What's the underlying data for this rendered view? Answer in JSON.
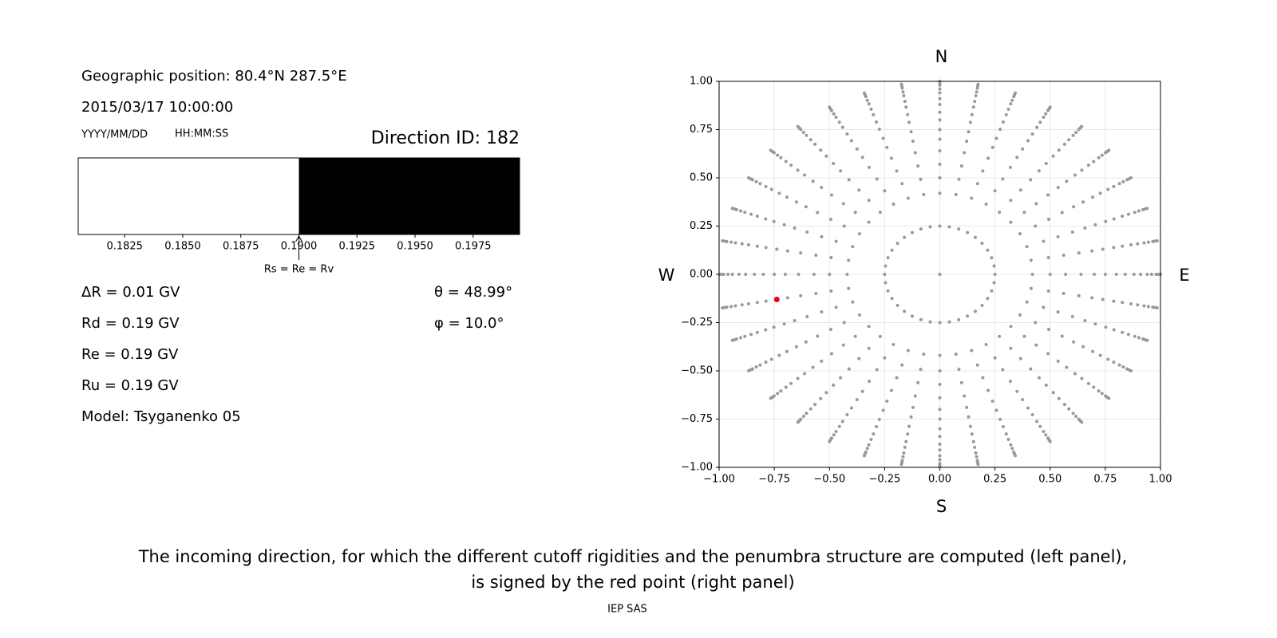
{
  "header": {
    "position": "Geographic position: 80.4°N 287.5°E",
    "datetime": "2015/03/17 10:00:00",
    "date_format": "YYYY/MM/DD",
    "time_format": "HH:MM:SS",
    "direction": "Direction ID: 182"
  },
  "params": [
    "ΔR = 0.01 GV",
    "Rd = 0.19 GV",
    "Re = 0.19 GV",
    "Ru = 0.19 GV",
    "Model: Tsyganenko 05"
  ],
  "angles": [
    "θ = 48.99°",
    "φ = 10.0°"
  ],
  "chart_data": [
    {
      "type": "penumbra",
      "xlim": [
        0.1805,
        0.1995
      ],
      "xticks": [
        0.1825,
        {
          "value": 0.185,
          "label": "0.1850"
        },
        0.1875,
        {
          "value": 0.19,
          "label": "0.1900"
        },
        0.1925,
        {
          "value": 0.195,
          "label": "0.1950"
        },
        0.1975
      ],
      "segments": [
        {
          "start": 0.1805,
          "end": 0.19,
          "color": "#ffffff"
        },
        {
          "start": 0.19,
          "end": 0.1995,
          "color": "#000000"
        }
      ],
      "annotation": {
        "text": "Rs = Re = Rv",
        "x": 0.19
      }
    },
    {
      "type": "scatter",
      "xlim": [
        -1,
        1
      ],
      "ylim": [
        -1,
        1
      ],
      "xticks": [
        {
          "value": -1,
          "label": "−1.00"
        },
        {
          "value": -0.75,
          "label": "−0.75"
        },
        {
          "value": -0.5,
          "label": "−0.50"
        },
        {
          "value": -0.25,
          "label": "−0.25"
        },
        {
          "value": 0,
          "label": "0.00"
        },
        {
          "value": 0.25,
          "label": "0.25"
        },
        {
          "value": 0.5,
          "label": "0.50"
        },
        {
          "value": 0.75,
          "label": "0.75"
        },
        {
          "value": 1,
          "label": "1.00"
        }
      ],
      "yticks": [
        {
          "value": -1,
          "label": "−1.00"
        },
        {
          "value": -0.75,
          "label": "−0.75"
        },
        {
          "value": -0.5,
          "label": "−0.50"
        },
        {
          "value": -0.25,
          "label": "−0.25"
        },
        {
          "value": 0,
          "label": "0.00"
        },
        {
          "value": 0.25,
          "label": "0.25"
        },
        {
          "value": 0.5,
          "label": "0.50"
        },
        {
          "value": 0.75,
          "label": "0.75"
        },
        {
          "value": 1,
          "label": "1.00"
        }
      ],
      "grid": true,
      "directions": {
        "north": "N",
        "south": "S",
        "east": "E",
        "west": "W"
      },
      "point_color": "#999999",
      "rings": [
        {
          "r": 0,
          "azimuth": [
            0
          ]
        },
        {
          "r": 0.25,
          "azimuth": [
            0,
            10,
            20,
            30,
            40,
            50,
            60,
            70,
            80,
            90,
            100,
            110,
            120,
            130,
            140,
            150,
            160,
            170,
            180,
            190,
            200,
            210,
            220,
            230,
            240,
            250,
            260,
            270,
            280,
            290,
            300,
            310,
            320,
            330,
            340,
            350
          ]
        }
      ],
      "spoke_azimuths": [
        0,
        10,
        20,
        30,
        40,
        50,
        60,
        70,
        80,
        90,
        100,
        110,
        120,
        130,
        140,
        150,
        160,
        170,
        180,
        190,
        200,
        210,
        220,
        230,
        240,
        250,
        260,
        270,
        280,
        290,
        300,
        310,
        320,
        330,
        340,
        350
      ],
      "spoke_r": [
        0.42,
        0.5,
        0.57,
        0.64,
        0.7,
        0.75,
        0.8,
        0.84,
        0.88,
        0.91,
        0.94,
        0.96,
        0.98,
        0.99,
        1.0
      ],
      "highlight": {
        "color": "#e8001c",
        "r": 0.75,
        "azimuth": 190
      }
    }
  ],
  "caption": [
    "The incoming direction, for which the different cutoff rigidities and the penumbra structure are computed (left panel),",
    "is signed by the red point (right panel)"
  ],
  "footer": "IEP SAS"
}
